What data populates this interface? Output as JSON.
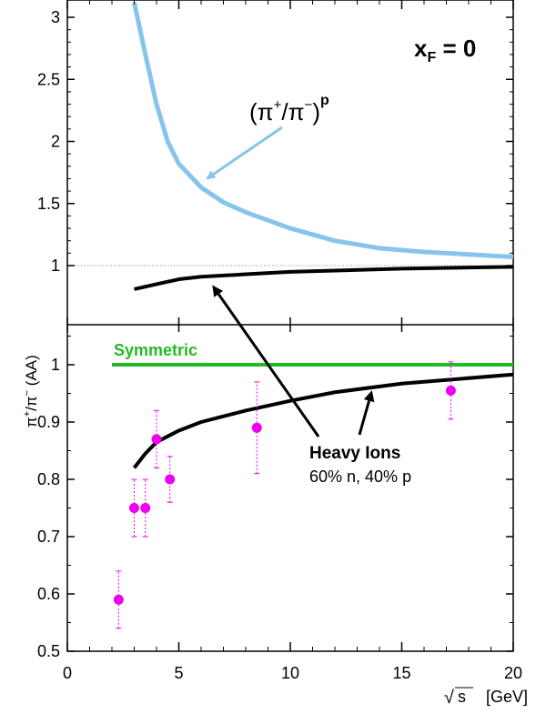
{
  "chart_data": [
    {
      "type": "line",
      "panel": "top",
      "title": "",
      "ylim": [
        0.5,
        3.1
      ],
      "xlim": [
        0,
        20
      ],
      "yticks": [
        "1",
        "1.5",
        "2",
        "2.5",
        "3"
      ],
      "annotation_xf": "x",
      "annotation_xf_sub": "F",
      "annotation_xf_eq": " = 0",
      "reference_line_y": 1,
      "series": [
        {
          "name": "(π⁺/π⁻)ᵖ",
          "color": "#87c4ec",
          "x": [
            3.0,
            3.5,
            4.0,
            4.5,
            5.0,
            6.0,
            7.0,
            8.0,
            10.0,
            12.0,
            14.0,
            16.0,
            18.0,
            20.0
          ],
          "y": [
            3.12,
            2.7,
            2.3,
            2.0,
            1.82,
            1.63,
            1.51,
            1.43,
            1.3,
            1.2,
            1.14,
            1.11,
            1.09,
            1.07
          ]
        },
        {
          "name": "Heavy Ions top",
          "color": "#000000",
          "x": [
            3.0,
            4.0,
            5.0,
            6.0,
            8.0,
            10.0,
            12.0,
            15.0,
            20.0
          ],
          "y": [
            0.81,
            0.85,
            0.89,
            0.91,
            0.93,
            0.95,
            0.96,
            0.975,
            0.99
          ]
        }
      ],
      "label_pp_main": "(π",
      "label_pp_sup1": "+",
      "label_pp_mid": "/π",
      "label_pp_sup2": "−",
      "label_pp_close": ")",
      "label_pp_sup3": "p"
    },
    {
      "type": "scatter",
      "panel": "bottom",
      "ylabel_main": "π",
      "ylabel_sup1": "+",
      "ylabel_mid": "/π",
      "ylabel_sup2": "−",
      "ylabel_tail": " (AA)",
      "xlabel_sym": "√",
      "xlabel_s": "s",
      "xlabel_unit": "[GeV]",
      "xlim": [
        0,
        20
      ],
      "ylim": [
        0.5,
        1.07
      ],
      "xticks": [
        "0",
        "5",
        "10",
        "15",
        "20"
      ],
      "yticks": [
        "0.5",
        "0.6",
        "0.7",
        "0.8",
        "0.9",
        "1"
      ],
      "symmetric": {
        "label": "Symmetric",
        "color": "#22bb22",
        "x": [
          2.0,
          20.0
        ],
        "y": [
          1.0,
          1.0
        ]
      },
      "heavy_ions_curve": {
        "color": "#000000",
        "x": [
          3.0,
          3.5,
          4.0,
          5.0,
          6.0,
          7.0,
          8.0,
          10.0,
          12.0,
          15.0,
          20.0
        ],
        "y": [
          0.82,
          0.845,
          0.865,
          0.885,
          0.9,
          0.91,
          0.92,
          0.937,
          0.952,
          0.967,
          0.983
        ]
      },
      "heavy_ions_label": "Heavy Ions",
      "heavy_ions_sub": "60% n, 40% p",
      "points": {
        "color": "#ee00ee",
        "x": [
          2.3,
          3.0,
          3.5,
          4.0,
          4.6,
          8.5,
          17.2
        ],
        "y": [
          0.59,
          0.75,
          0.75,
          0.87,
          0.8,
          0.89,
          0.955
        ],
        "err": [
          0.05,
          0.05,
          0.05,
          0.05,
          0.04,
          0.08,
          0.05
        ]
      }
    }
  ]
}
